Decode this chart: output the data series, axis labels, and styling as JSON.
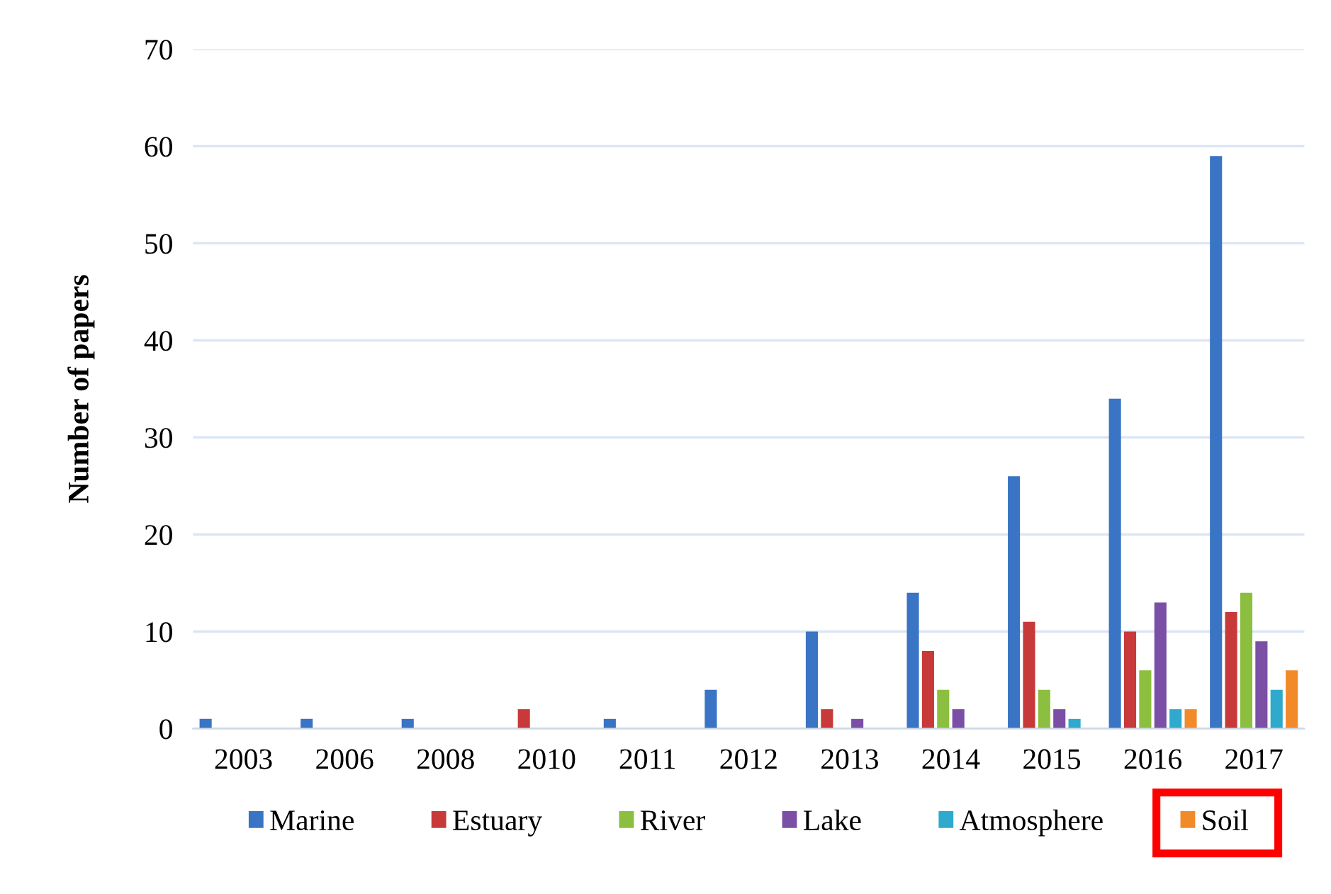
{
  "chart_data": {
    "type": "bar",
    "ylabel": "Number of papers",
    "categories": [
      "2003",
      "2006",
      "2008",
      "2010",
      "2011",
      "2012",
      "2013",
      "2014",
      "2015",
      "2016",
      "2017"
    ],
    "series": [
      {
        "name": "Marine",
        "color": "#3a74c4",
        "values": [
          1,
          1,
          1,
          0,
          1,
          4,
          10,
          14,
          26,
          34,
          59
        ]
      },
      {
        "name": "Estuary",
        "color": "#c83a3a",
        "values": [
          0,
          0,
          0,
          2,
          0,
          0,
          2,
          8,
          11,
          10,
          12
        ]
      },
      {
        "name": "River",
        "color": "#8cbf3f",
        "values": [
          0,
          0,
          0,
          0,
          0,
          0,
          0,
          4,
          4,
          6,
          14
        ]
      },
      {
        "name": "Lake",
        "color": "#7b4fa6",
        "values": [
          0,
          0,
          0,
          0,
          0,
          0,
          1,
          2,
          2,
          13,
          9
        ]
      },
      {
        "name": "Atmosphere",
        "color": "#2fa9cc",
        "values": [
          0,
          0,
          0,
          0,
          0,
          0,
          0,
          0,
          1,
          2,
          4
        ]
      },
      {
        "name": "Soil",
        "color": "#f28a2a",
        "values": [
          0,
          0,
          0,
          0,
          0,
          0,
          0,
          0,
          0,
          2,
          6
        ]
      }
    ],
    "ylim": [
      0,
      70
    ],
    "yticks": [
      0,
      10,
      20,
      30,
      40,
      50,
      60,
      70
    ],
    "grid": "y",
    "legend": "bottom"
  }
}
